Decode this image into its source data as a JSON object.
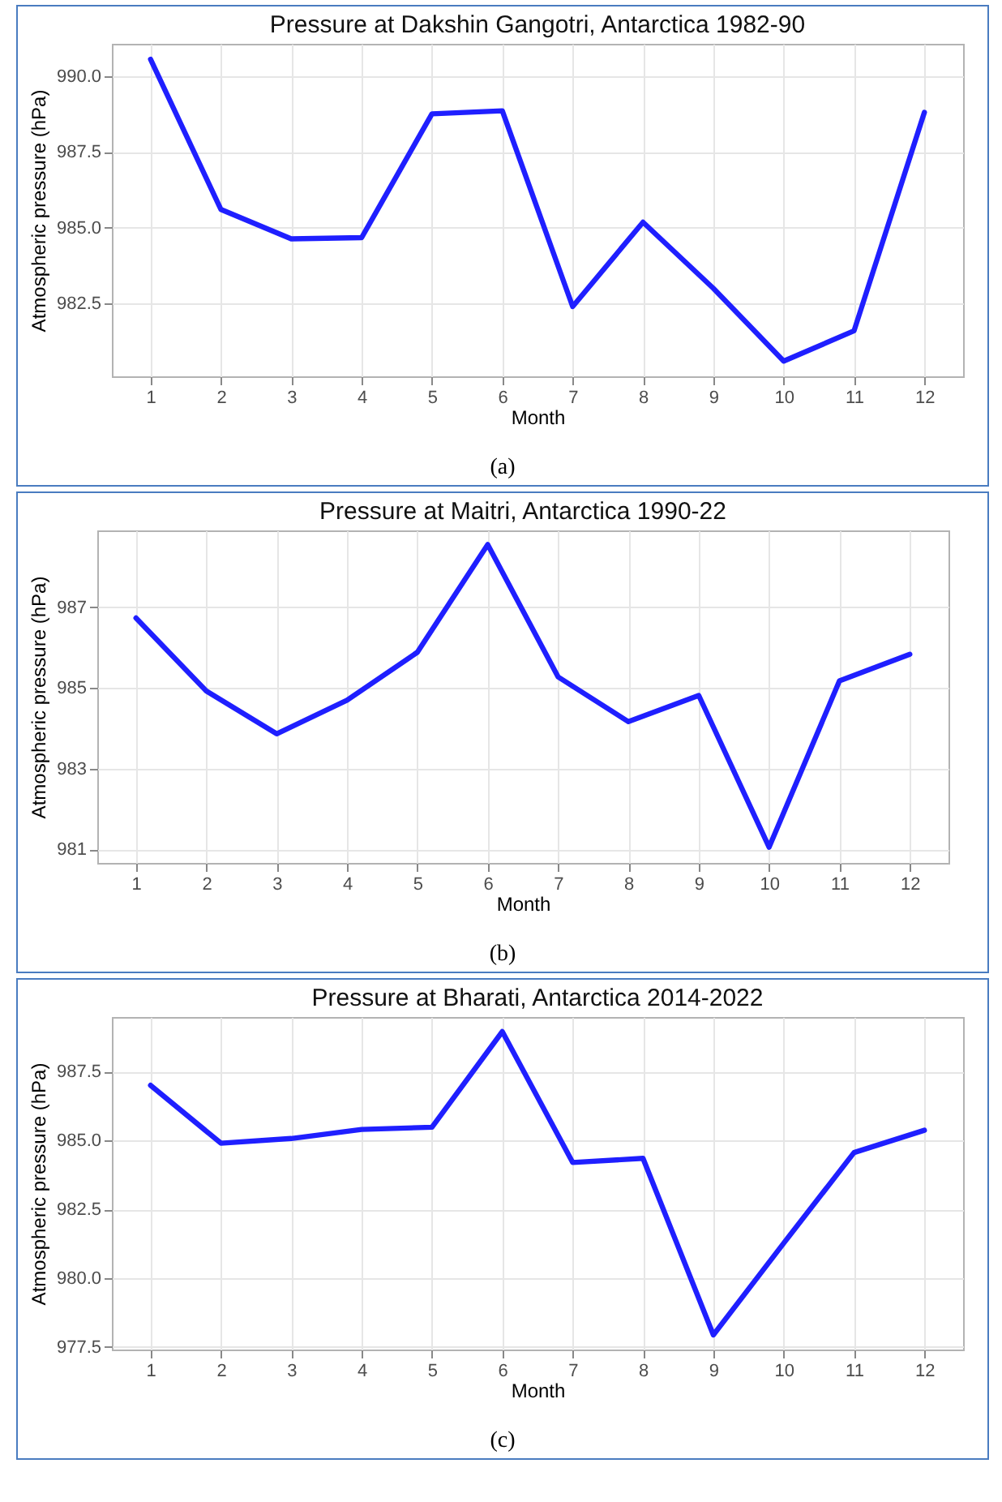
{
  "chart_data": [
    {
      "type": "line",
      "title": "Pressure at Dakshin Gangotri, Antarctica 1982-90",
      "xlabel": "Month",
      "ylabel": "Atmospheric pressure (hPa)",
      "x": [
        1,
        2,
        3,
        4,
        5,
        6,
        7,
        8,
        9,
        10,
        11,
        12
      ],
      "series": [
        {
          "color": "#1f1fff",
          "values": [
            990.55,
            985.6,
            984.63,
            984.67,
            988.75,
            988.85,
            982.4,
            985.18,
            983.0,
            980.6,
            981.6,
            988.8
          ]
        }
      ],
      "xlim": [
        0.45,
        12.55
      ],
      "xticks": [
        1,
        2,
        3,
        4,
        5,
        6,
        7,
        8,
        9,
        10,
        11,
        12
      ],
      "ylim": [
        980.1,
        991.06
      ],
      "yticks": [
        {
          "value": 982.5,
          "label": "982.5"
        },
        {
          "value": 985,
          "label": "985.0"
        },
        {
          "value": 987.5,
          "label": "987.5"
        },
        {
          "value": 990,
          "label": "990.0"
        }
      ],
      "grid": true,
      "annotations": [
        "(a)"
      ]
    },
    {
      "type": "line",
      "title": "Pressure at Maitri, Antarctica 1990-22",
      "xlabel": "Month",
      "ylabel": "Atmospheric pressure (hPa)",
      "x": [
        1,
        2,
        3,
        4,
        5,
        6,
        7,
        8,
        9,
        10,
        11,
        12
      ],
      "series": [
        {
          "color": "#1f1fff",
          "values": [
            986.73,
            984.92,
            983.86,
            984.69,
            985.88,
            988.55,
            985.27,
            984.16,
            984.81,
            981.05,
            985.17,
            985.83
          ]
        }
      ],
      "xlim": [
        0.45,
        12.55
      ],
      "xticks": [
        1,
        2,
        3,
        4,
        5,
        6,
        7,
        8,
        9,
        10,
        11,
        12
      ],
      "ylim": [
        980.66,
        988.9
      ],
      "yticks": [
        981,
        983,
        985,
        987
      ],
      "grid": true,
      "annotations": [
        "(b)"
      ]
    },
    {
      "type": "line",
      "title": "Pressure at Bharati, Antarctica 2014-2022",
      "xlabel": "Month",
      "ylabel": "Atmospheric pressure (hPa)",
      "x": [
        1,
        2,
        3,
        4,
        5,
        6,
        7,
        8,
        9,
        10,
        11,
        12
      ],
      "series": [
        {
          "color": "#1f1fff",
          "values": [
            987.0,
            984.9,
            985.07,
            985.4,
            985.48,
            988.95,
            984.2,
            984.35,
            977.94,
            981.27,
            984.56,
            985.37
          ]
        }
      ],
      "xlim": [
        0.45,
        12.55
      ],
      "xticks": [
        1,
        2,
        3,
        4,
        5,
        6,
        7,
        8,
        9,
        10,
        11,
        12
      ],
      "ylim": [
        977.41,
        989.48
      ],
      "yticks": [
        {
          "value": 977.5,
          "label": "977.5"
        },
        {
          "value": 980,
          "label": "980.0"
        },
        {
          "value": 982.5,
          "label": "982.5"
        },
        {
          "value": 985,
          "label": "985.0"
        },
        {
          "value": 987.5,
          "label": "987.5"
        }
      ],
      "grid": true,
      "annotations": [
        "(c)"
      ]
    }
  ]
}
